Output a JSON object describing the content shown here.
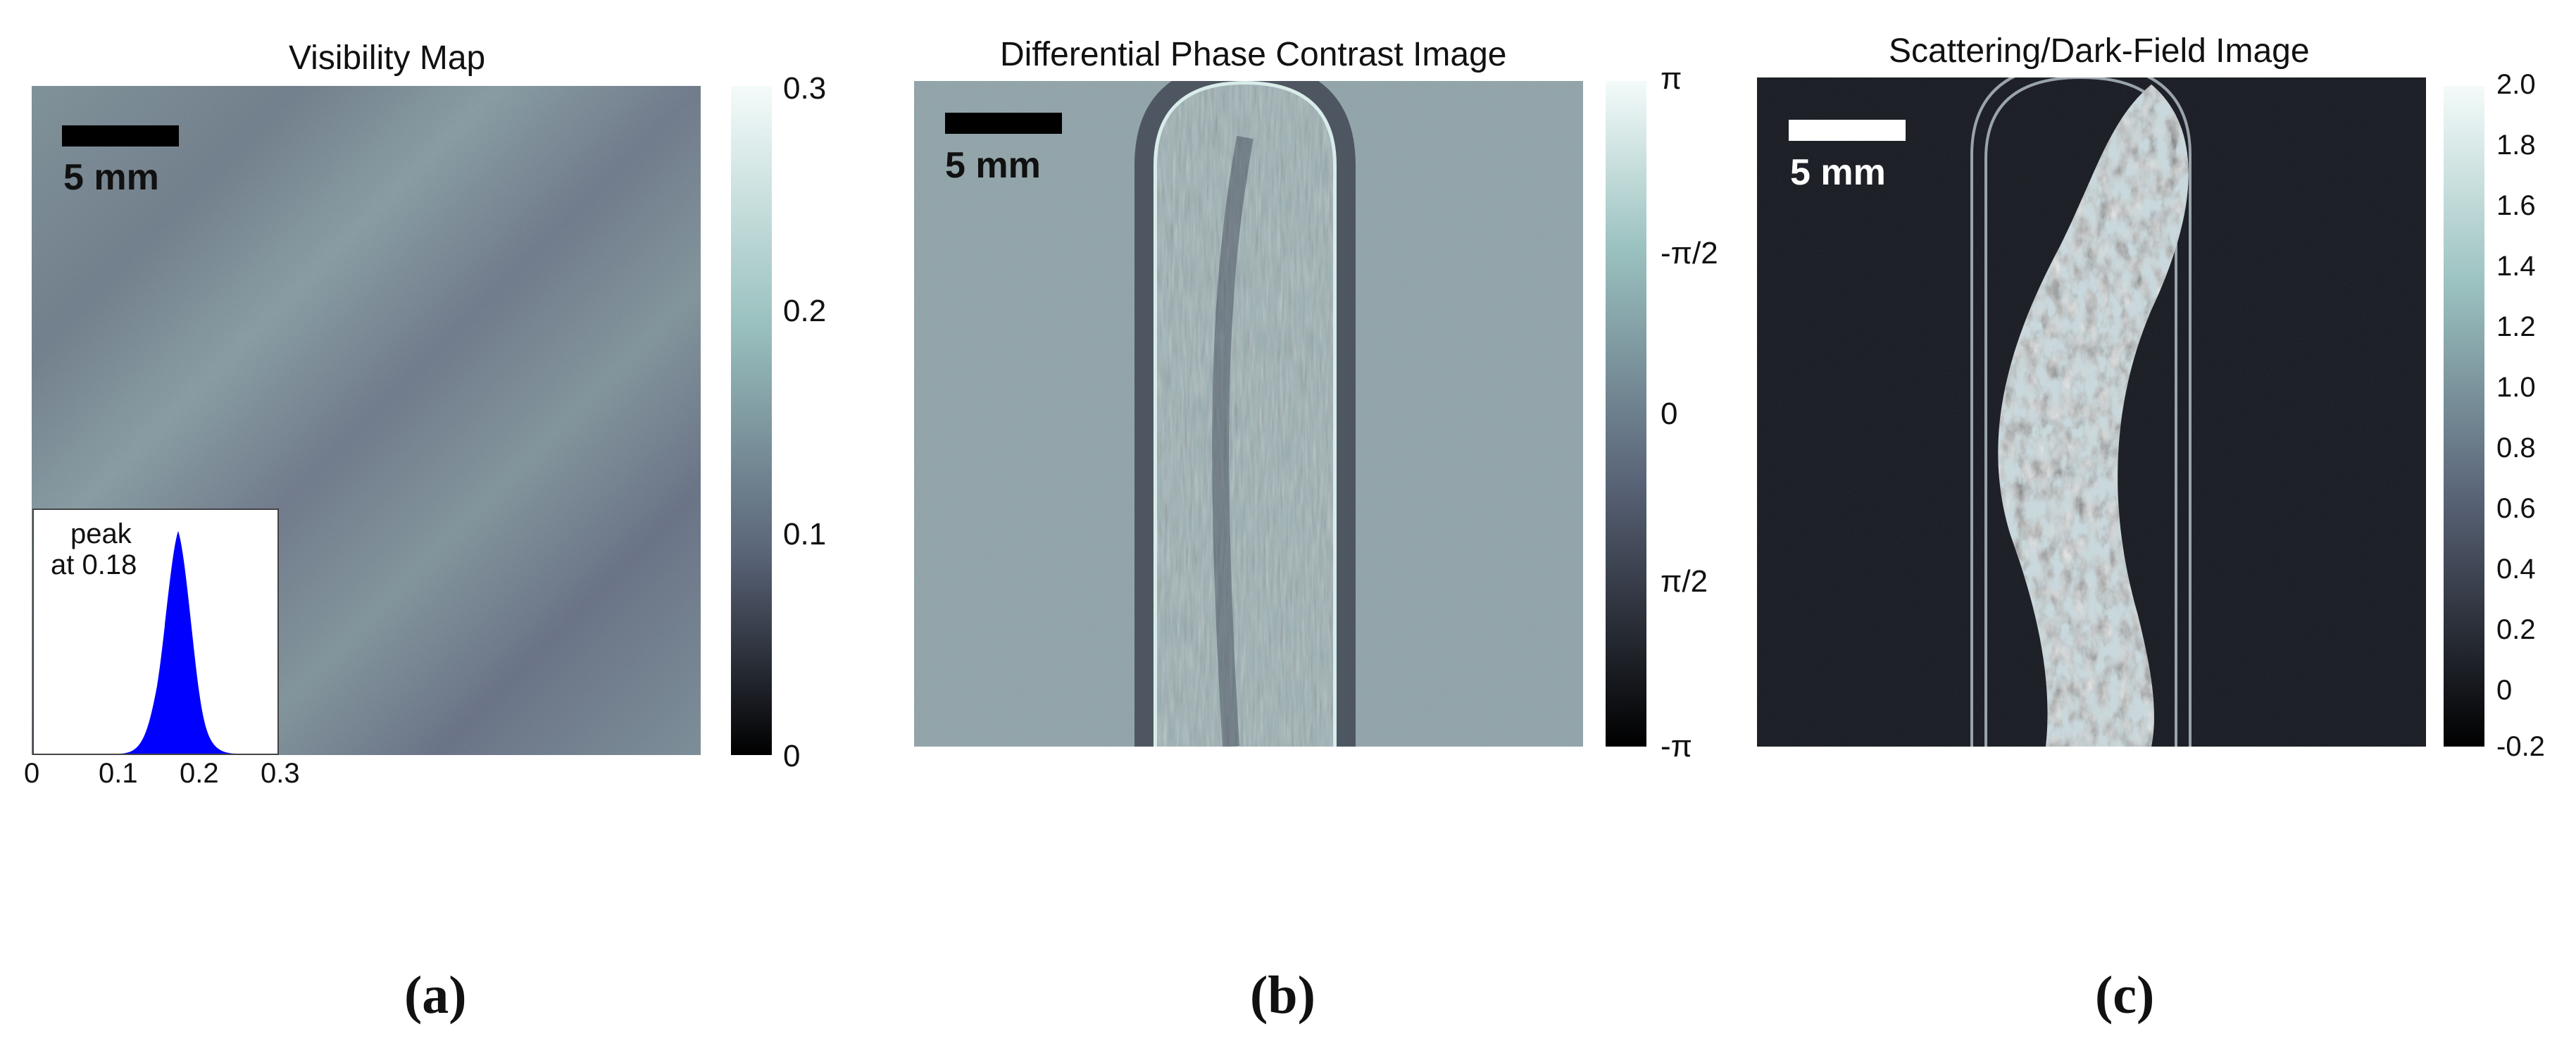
{
  "panels": [
    {
      "title": "Visibility Map",
      "sublabel": "(a)",
      "scalebar": "5 mm",
      "colorbar_ticks": [
        "0.3",
        "0.2",
        "0.1",
        "0"
      ],
      "colorbar_colors": [
        "#f4fbfa",
        "#9bc2c0",
        "#5a6478",
        "#000000"
      ],
      "inset": {
        "label_line1": "peak",
        "label_line2": "at 0.18",
        "x_ticks": [
          "0",
          "0.1",
          "0.2",
          "0.3"
        ],
        "peak_value": 0.18,
        "bar_color": "#0000ff"
      }
    },
    {
      "title": "Differential Phase Contrast Image",
      "sublabel": "(b)",
      "scalebar": "5 mm",
      "colorbar_ticks": [
        "π",
        "-π/2",
        "0",
        "π/2",
        "-π"
      ],
      "colorbar_colors": [
        "#f4fbfa",
        "#9bc2c0",
        "#5a6478",
        "#000000"
      ]
    },
    {
      "title": "Scattering/Dark-Field Image",
      "sublabel": "(c)",
      "scalebar": "5 mm",
      "colorbar_ticks": [
        "2.0",
        "1.8",
        "1.6",
        "1.4",
        "1.2",
        "1.0",
        "0.8",
        "0.6",
        "0.4",
        "0.2",
        "0",
        "-0.2"
      ],
      "colorbar_colors": [
        "#f4fbfa",
        "#9bc2c0",
        "#5a6478",
        "#000000"
      ]
    }
  ]
}
